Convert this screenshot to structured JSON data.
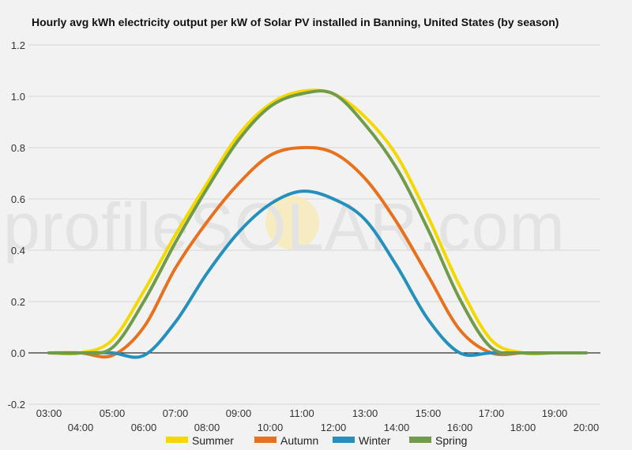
{
  "watermark": "profileSOLAR.com",
  "chart_data": {
    "type": "line",
    "title": "Hourly avg kWh electricity output per kW of Solar PV installed in Banning, United States (by season)",
    "xlabel": "",
    "ylabel": "",
    "ylim": [
      -0.2,
      1.2
    ],
    "yticks": [
      "-0.2",
      "0.0",
      "0.2",
      "0.4",
      "0.6",
      "0.8",
      "1.0",
      "1.2"
    ],
    "x": [
      "03:00",
      "04:00",
      "05:00",
      "06:00",
      "07:00",
      "08:00",
      "09:00",
      "10:00",
      "11:00",
      "12:00",
      "13:00",
      "14:00",
      "15:00",
      "16:00",
      "17:00",
      "18:00",
      "19:00",
      "20:00"
    ],
    "grid": true,
    "legend_position": "bottom",
    "series": [
      {
        "name": "Summer",
        "color": "#f5d800",
        "values": [
          0.0,
          0.0,
          0.05,
          0.24,
          0.46,
          0.66,
          0.85,
          0.97,
          1.02,
          1.01,
          0.92,
          0.77,
          0.53,
          0.26,
          0.05,
          0.0,
          0.0,
          0.0
        ]
      },
      {
        "name": "Autumn",
        "color": "#e8711e",
        "values": [
          0.0,
          0.0,
          -0.01,
          0.1,
          0.33,
          0.51,
          0.66,
          0.77,
          0.8,
          0.78,
          0.68,
          0.51,
          0.3,
          0.09,
          0.0,
          0.0,
          0.0,
          0.0
        ]
      },
      {
        "name": "Winter",
        "color": "#2590bd",
        "values": [
          0.0,
          0.0,
          0.0,
          -0.01,
          0.12,
          0.31,
          0.47,
          0.58,
          0.63,
          0.6,
          0.52,
          0.34,
          0.13,
          0.0,
          0.0,
          0.0,
          0.0,
          0.0
        ]
      },
      {
        "name": "Spring",
        "color": "#6f9b4a",
        "values": [
          0.0,
          0.0,
          0.02,
          0.2,
          0.43,
          0.64,
          0.83,
          0.96,
          1.01,
          1.01,
          0.89,
          0.72,
          0.48,
          0.21,
          0.02,
          0.0,
          0.0,
          0.0
        ]
      }
    ]
  }
}
